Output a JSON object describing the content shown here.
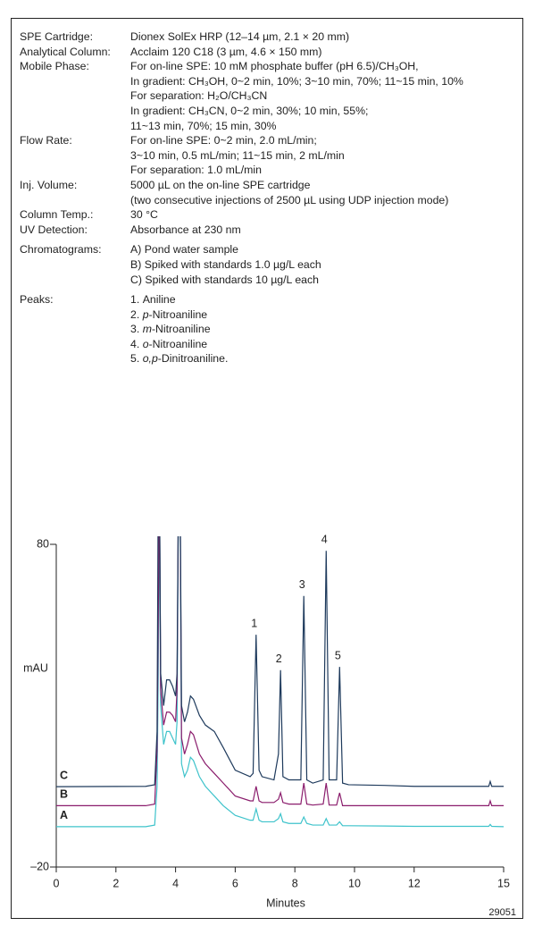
{
  "conditions": [
    {
      "label": "SPE Cartridge:",
      "lines": [
        "Dionex SolEx HRP (12–14 µm, 2.1 × 20 mm)"
      ]
    },
    {
      "label": "Analytical Column:",
      "lines": [
        "Acclaim 120 C18 (3 µm, 4.6 × 150 mm)"
      ]
    },
    {
      "label": "Mobile Phase:",
      "lines": [
        "For on-line SPE: 10 mM phosphate buffer (pH 6.5)/CH₃OH,",
        "In gradient: CH₃OH, 0~2 min, 10%; 3~10 min, 70%; 11~15 min, 10%",
        "For separation: H₂O/CH₃CN",
        "In gradient: CH₃CN, 0~2 min, 30%; 10 min, 55%;",
        "11~13 min, 70%; 15 min, 30%"
      ]
    },
    {
      "label": "Flow  Rate:",
      "lines": [
        "For on-line SPE: 0~2 min, 2.0 mL/min;",
        "3~10 min, 0.5 mL/min; 11~15 min, 2 mL/min",
        "For separation: 1.0 mL/min"
      ]
    },
    {
      "label": "Inj. Volume:",
      "lines": [
        "5000 µL on the on-line SPE cartridge",
        "(two consecutive injections of 2500 µL using UDP injection mode)"
      ]
    },
    {
      "label": "Column Temp.:",
      "lines": [
        "30 °C"
      ]
    },
    {
      "label": "UV Detection:",
      "lines": [
        "Absorbance at 230 nm"
      ]
    }
  ],
  "chromatograms": {
    "label": "Chromatograms:",
    "lines": [
      "A) Pond water sample",
      "B) Spiked with standards 1.0 µg/L each",
      "C) Spiked with standards 10 µg/L each"
    ]
  },
  "peaks": {
    "label": "Peaks:",
    "lines": [
      {
        "number": "1.",
        "italic": "",
        "name": "Aniline"
      },
      {
        "number": "2.",
        "italic": "p",
        "name": "-Nitroaniline"
      },
      {
        "number": "3.",
        "italic": "m",
        "name": "-Nitroaniline"
      },
      {
        "number": "4.",
        "italic": "o",
        "name": "-Nitroaniline"
      },
      {
        "number": "5.",
        "italic": "o,p",
        "name": "-Dinitroaniline."
      }
    ]
  },
  "chart_data": {
    "type": "line",
    "x_label": "Minutes",
    "y_label": "mAU",
    "figure_number": "29051",
    "xlim": [
      0,
      15
    ],
    "xticks": [
      0,
      2,
      4,
      6,
      8,
      10,
      12,
      15
    ],
    "ylim": [
      -20,
      80
    ],
    "yticks": [
      80,
      {
        "value": -20,
        "label": "–20"
      }
    ],
    "x": [
      0,
      3.0,
      3.3,
      3.38,
      3.42,
      3.46,
      3.5,
      3.6,
      3.7,
      3.8,
      3.9,
      4.0,
      4.05,
      4.1,
      4.15,
      4.2,
      4.3,
      4.4,
      4.5,
      4.6,
      4.8,
      5.0,
      5.3,
      5.6,
      6.0,
      6.5,
      6.6,
      6.7,
      6.8,
      6.9,
      7.3,
      7.45,
      7.52,
      7.6,
      7.8,
      8.2,
      8.3,
      8.4,
      8.6,
      8.95,
      9.05,
      9.15,
      9.4,
      9.5,
      9.6,
      9.8,
      11,
      12,
      13,
      14.5,
      14.55,
      14.6,
      15
    ],
    "series": [
      {
        "name": "A",
        "color": "#3ec3cb",
        "values": [
          -7.5,
          -7.5,
          -7,
          5,
          40,
          100,
          30,
          18,
          22,
          22,
          20,
          18,
          25,
          100,
          100,
          12,
          8,
          10,
          14,
          13,
          8,
          5,
          2,
          -1,
          -4,
          -5.5,
          -5.5,
          -2,
          -5.5,
          -6,
          -6,
          -5,
          -3.5,
          -6,
          -6.5,
          -6.5,
          -4.5,
          -6.5,
          -7,
          -7,
          -5,
          -7,
          -7,
          -6,
          -7.2,
          -7.2,
          -7.3,
          -7.4,
          -7.4,
          -7.4,
          -6.8,
          -7.4,
          -7.5
        ]
      },
      {
        "name": "B",
        "color": "#8a1c6c",
        "values": [
          -1,
          -1,
          -0.5,
          16,
          57,
          100,
          35,
          24,
          28,
          28,
          27,
          25,
          35,
          100,
          100,
          20,
          15,
          18,
          22,
          21,
          15,
          12,
          9,
          6,
          2,
          0.5,
          0.5,
          5,
          0.5,
          0,
          0,
          1,
          3,
          0,
          -0.5,
          -0.5,
          6,
          -0.5,
          -0.8,
          -0.5,
          6,
          -0.8,
          -0.8,
          3,
          -1,
          -1,
          -1,
          -1,
          -1,
          -1,
          0.5,
          -1,
          -1
        ]
      },
      {
        "name": "C",
        "color": "#1e3a5c",
        "values": [
          4.9,
          5,
          5.5,
          22,
          100,
          100,
          40,
          30,
          38,
          38,
          36,
          33,
          40,
          100,
          100,
          30,
          25,
          28,
          33,
          32,
          27,
          24,
          22,
          17,
          10,
          8,
          9,
          52,
          10,
          8,
          7,
          15,
          41,
          8,
          7,
          7,
          64,
          7,
          6,
          7,
          78,
          7,
          7,
          42,
          6,
          5.5,
          5.3,
          5,
          5,
          5,
          6.5,
          5,
          5
        ]
      }
    ],
    "annotations": [
      {
        "text": "1",
        "x": 6.7
      },
      {
        "text": "2",
        "x": 7.52
      },
      {
        "text": "3",
        "x": 8.3
      },
      {
        "text": "4",
        "x": 9.05
      },
      {
        "text": "5",
        "x": 9.5
      }
    ]
  }
}
